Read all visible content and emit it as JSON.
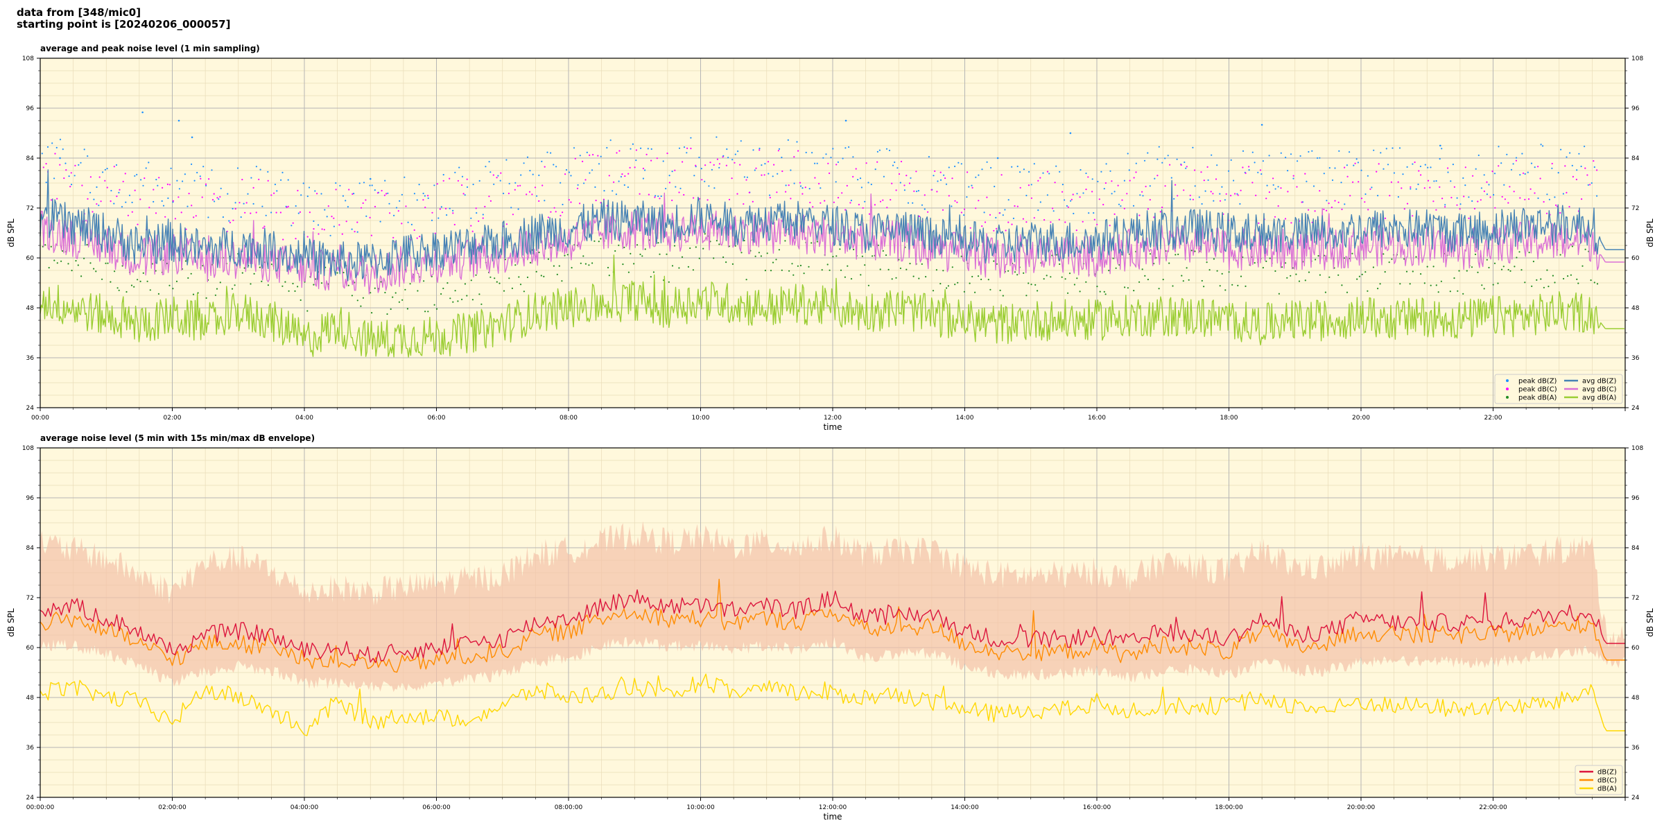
{
  "header": {
    "line1": "data from [348/mic0]",
    "line2": "starting point is [20240206_000057]"
  },
  "chart_data": [
    {
      "type": "line",
      "title": "average and peak noise level (1 min sampling)",
      "xlabel": "time",
      "ylabel": "dB SPL",
      "ylim": [
        24,
        108
      ],
      "y_ticks": [
        24,
        36,
        48,
        60,
        72,
        84,
        96,
        108
      ],
      "x_tick_labels": [
        "00:00",
        "02:00",
        "04:00",
        "06:00",
        "08:00",
        "10:00",
        "12:00",
        "14:00",
        "16:00",
        "18:00",
        "20:00",
        "22:00"
      ],
      "x_range_hours": [
        0,
        24
      ],
      "grid": true,
      "background": "#fff8dc",
      "legend_position": "lower-right",
      "legend": [
        {
          "label": "peak dB(Z)",
          "color": "#1e90ff",
          "kind": "scatter"
        },
        {
          "label": "peak dB(C)",
          "color": "#ff00ff",
          "kind": "scatter"
        },
        {
          "label": "peak dB(A)",
          "color": "#228b22",
          "kind": "scatter"
        },
        {
          "label": "avg dB(Z)",
          "color": "#4682b4",
          "kind": "line"
        },
        {
          "label": "avg dB(C)",
          "color": "#da70d6",
          "kind": "line"
        },
        {
          "label": "avg dB(A)",
          "color": "#9acd32",
          "kind": "line"
        }
      ],
      "x": [
        0,
        0.5,
        1,
        1.5,
        2,
        2.5,
        3,
        3.5,
        4,
        4.5,
        5,
        5.5,
        6,
        6.5,
        7,
        7.5,
        8,
        8.5,
        9,
        9.5,
        10,
        10.5,
        11,
        11.5,
        12,
        12.5,
        13,
        13.5,
        14,
        14.5,
        15,
        15.5,
        16,
        16.5,
        17,
        17.5,
        18,
        18.5,
        19,
        19.5,
        20,
        20.5,
        21,
        21.5,
        22,
        22.5,
        23,
        23.5,
        23.7,
        24
      ],
      "series": [
        {
          "name": "avg dB(Z)",
          "color": "#4682b4",
          "values": [
            70,
            68,
            66,
            63,
            64,
            62,
            63,
            62,
            60,
            59,
            59,
            61,
            62,
            63,
            64,
            66,
            67,
            69,
            69,
            68,
            70,
            68,
            69,
            69,
            68,
            66,
            67,
            65,
            64,
            63,
            64,
            64,
            64,
            66,
            67,
            67,
            66,
            66,
            66,
            66,
            67,
            67,
            67,
            66,
            67,
            68,
            68,
            68,
            62,
            62
          ]
        },
        {
          "name": "avg dB(C)",
          "color": "#da70d6",
          "values": [
            67,
            65,
            63,
            60,
            61,
            59,
            60,
            59,
            57,
            57,
            56,
            58,
            59,
            60,
            61,
            63,
            64,
            66,
            67,
            66,
            67,
            66,
            66,
            66,
            65,
            64,
            64,
            62,
            61,
            60,
            61,
            61,
            60,
            62,
            63,
            63,
            62,
            62,
            62,
            62,
            63,
            63,
            63,
            62,
            63,
            64,
            64,
            64,
            59,
            59
          ]
        },
        {
          "name": "avg dB(A)",
          "color": "#9acd32",
          "values": [
            50,
            48,
            46,
            44,
            46,
            44,
            47,
            45,
            40,
            44,
            40,
            41,
            41,
            42,
            44,
            47,
            48,
            49,
            50,
            48,
            50,
            49,
            48,
            49,
            48,
            47,
            48,
            46,
            45,
            44,
            45,
            45,
            45,
            46,
            46,
            46,
            45,
            44,
            45,
            45,
            46,
            45,
            46,
            45,
            46,
            46,
            47,
            47,
            43,
            43
          ]
        }
      ],
      "peak_spikes": [
        [
          0.3,
          84
        ],
        [
          1.55,
          95
        ],
        [
          2.1,
          93
        ],
        [
          2.3,
          89
        ],
        [
          5.0,
          79
        ],
        [
          12.2,
          93
        ],
        [
          14.5,
          84
        ],
        [
          15.6,
          90
        ],
        [
          18.5,
          92
        ],
        [
          21.2,
          87
        ]
      ]
    },
    {
      "type": "line",
      "title": "average noise level (5 min with 15s min/max dB envelope)",
      "xlabel": "time",
      "ylabel": "dB SPL",
      "ylim": [
        24,
        108
      ],
      "y_ticks": [
        24,
        36,
        48,
        60,
        72,
        84,
        96,
        108
      ],
      "x_tick_labels": [
        "00:00:00",
        "02:00:00",
        "04:00:00",
        "06:00:00",
        "08:00:00",
        "10:00:00",
        "12:00:00",
        "14:00:00",
        "16:00:00",
        "18:00:00",
        "20:00:00",
        "22:00:00"
      ],
      "x_range_hours": [
        0,
        24
      ],
      "grid": true,
      "background": "#fff8dc",
      "legend_position": "lower-right",
      "envelope_color": "#f4c2a8",
      "legend": [
        {
          "label": "dB(Z)",
          "color": "#dc143c",
          "kind": "line"
        },
        {
          "label": "dB(C)",
          "color": "#ff8c00",
          "kind": "line"
        },
        {
          "label": "dB(A)",
          "color": "#ffd700",
          "kind": "line"
        }
      ],
      "x": [
        0,
        0.5,
        1,
        1.5,
        2,
        2.5,
        3,
        3.5,
        4,
        4.5,
        5,
        5.5,
        6,
        6.5,
        7,
        7.5,
        8,
        8.5,
        9,
        9.5,
        10,
        10.5,
        11,
        11.5,
        12,
        12.5,
        13,
        13.5,
        14,
        14.5,
        15,
        15.5,
        16,
        16.5,
        17,
        17.5,
        18,
        18.5,
        19,
        19.5,
        20,
        20.5,
        21,
        21.5,
        22,
        22.5,
        23,
        23.5,
        23.7,
        24
      ],
      "series": [
        {
          "name": "dB(Z)",
          "color": "#dc143c",
          "values": [
            69,
            70,
            67,
            64,
            59,
            63,
            64,
            63,
            59,
            60,
            58,
            59,
            60,
            61,
            62,
            66,
            67,
            70,
            72,
            70,
            70,
            69,
            70,
            69,
            72,
            67,
            68,
            68,
            64,
            62,
            62,
            62,
            63,
            61,
            64,
            63,
            62,
            67,
            63,
            64,
            67,
            66,
            66,
            66,
            66,
            67,
            68,
            69,
            61,
            61
          ]
        },
        {
          "name": "dB(C)",
          "color": "#ff8c00",
          "values": [
            66,
            67,
            64,
            61,
            57,
            61,
            61,
            60,
            57,
            57,
            56,
            56,
            57,
            58,
            59,
            63,
            64,
            67,
            69,
            67,
            67,
            66,
            67,
            66,
            69,
            64,
            65,
            65,
            61,
            59,
            59,
            59,
            60,
            58,
            61,
            60,
            59,
            64,
            60,
            61,
            64,
            63,
            63,
            63,
            63,
            64,
            65,
            66,
            57,
            57
          ]
        },
        {
          "name": "dB(A)",
          "color": "#ffd700",
          "values": [
            49,
            51,
            48,
            47,
            42,
            50,
            48,
            45,
            40,
            47,
            42,
            44,
            43,
            43,
            46,
            50,
            48,
            49,
            51,
            48,
            52,
            49,
            50,
            49,
            49,
            48,
            49,
            47,
            45,
            44,
            45,
            45,
            46,
            45,
            46,
            46,
            46,
            48,
            46,
            45,
            47,
            46,
            46,
            45,
            46,
            46,
            47,
            50,
            40,
            40
          ]
        }
      ],
      "envelope_low": [
        62,
        62,
        60,
        57,
        53,
        56,
        57,
        56,
        53,
        53,
        52,
        52,
        53,
        54,
        55,
        58,
        59,
        62,
        63,
        62,
        62,
        61,
        62,
        61,
        63,
        59,
        60,
        60,
        57,
        55,
        55,
        55,
        56,
        54,
        56,
        56,
        55,
        58,
        56,
        56,
        58,
        58,
        58,
        58,
        58,
        59,
        60,
        61,
        58,
        58
      ],
      "envelope_high": [
        84,
        82,
        80,
        76,
        72,
        79,
        80,
        77,
        72,
        73,
        72,
        73,
        74,
        75,
        76,
        81,
        82,
        84,
        86,
        84,
        85,
        83,
        84,
        83,
        85,
        81,
        82,
        82,
        78,
        76,
        76,
        76,
        77,
        75,
        79,
        78,
        77,
        82,
        78,
        78,
        81,
        80,
        80,
        80,
        80,
        81,
        82,
        83,
        62,
        62
      ]
    }
  ]
}
